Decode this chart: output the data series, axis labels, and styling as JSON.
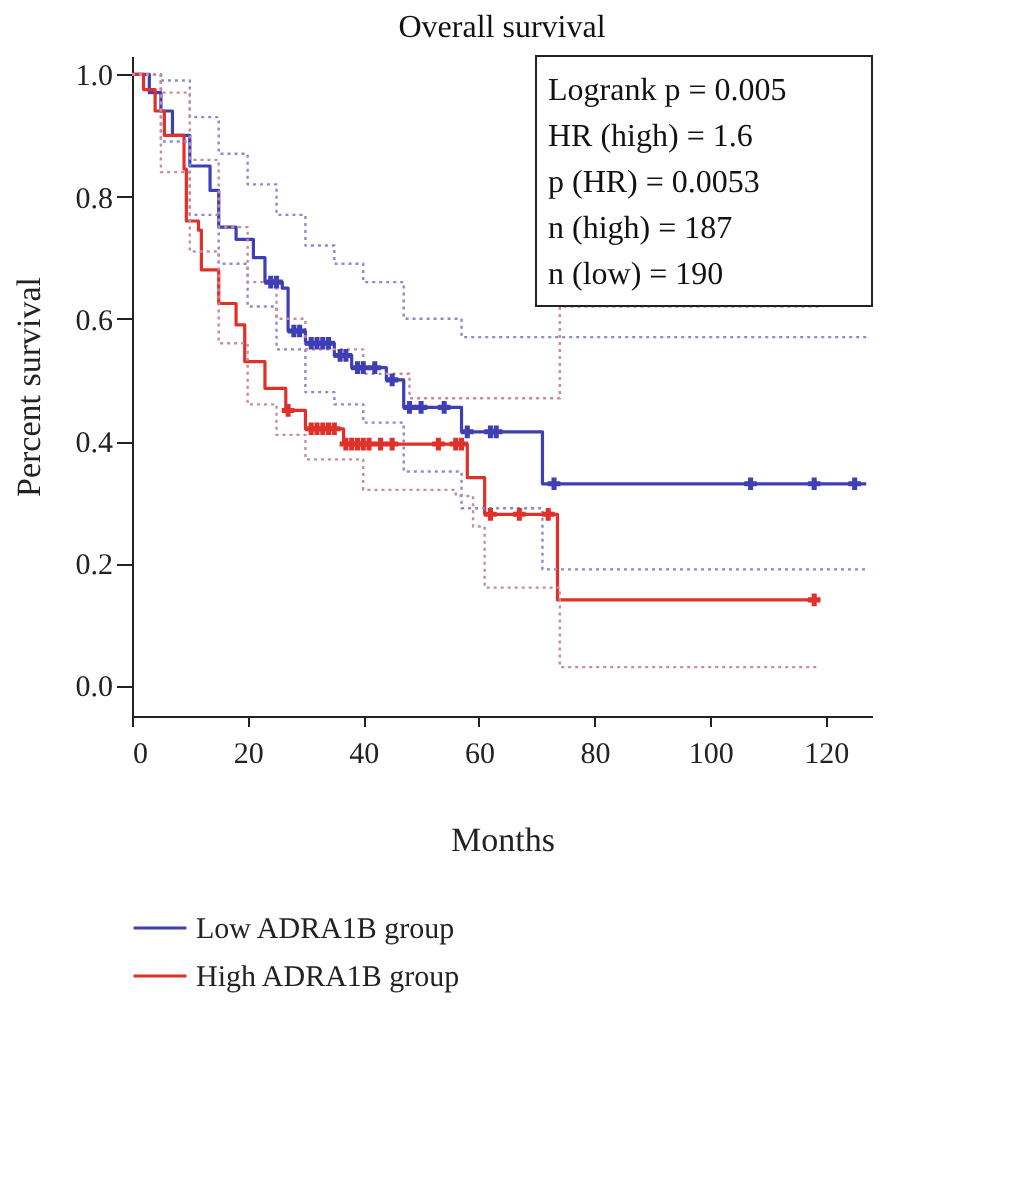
{
  "chart_data": {
    "type": "step",
    "title": "Overall survival",
    "xlabel": "Months",
    "ylabel": "Percent survival",
    "annotations": [
      "Logrank p = 0.005",
      "HR (high) = 1.6",
      "p (HR) = 0.0053",
      "n (high) = 187",
      "n (low) = 190"
    ],
    "xlim": [
      0,
      128
    ],
    "ylim": [
      -0.05,
      1.03
    ],
    "xticks": [
      0,
      20,
      40,
      60,
      80,
      100,
      120
    ],
    "yticks": [
      {
        "value": 0,
        "label": "0.0"
      },
      {
        "value": 0.2,
        "label": "0.2"
      },
      {
        "value": 0.4,
        "label": "0.4"
      },
      {
        "value": 0.6,
        "label": "0.6"
      },
      {
        "value": 0.8,
        "label": "0.8"
      },
      {
        "value": 1,
        "label": "1.0"
      }
    ],
    "grid": false,
    "legend": "bottom",
    "line_style": "solid",
    "marker": "none",
    "series": [
      {
        "name": "Low ADRA1B group",
        "color": "#3f3fb5",
        "x": [
          0,
          3,
          5,
          7,
          10,
          13.5,
          15,
          18,
          21,
          23,
          26,
          27,
          30,
          35,
          38,
          44,
          47,
          57,
          71,
          127
        ],
        "values": [
          1,
          0.97,
          0.94,
          0.9,
          0.85,
          0.81,
          0.75,
          0.73,
          0.7,
          0.66,
          0.65,
          0.58,
          0.56,
          0.54,
          0.52,
          0.5,
          0.455,
          0.415,
          0.33,
          0.33
        ]
      },
      {
        "name": "High ADRA1B group",
        "color": "#e0302a",
        "x": [
          0,
          2,
          4,
          5.6,
          9,
          9.4,
          11.5,
          12,
          15,
          18,
          19.5,
          23,
          26.6,
          30,
          36.6,
          58,
          61,
          73.6,
          119
        ],
        "values": [
          1,
          0.975,
          0.94,
          0.9,
          0.845,
          0.76,
          0.745,
          0.68,
          0.625,
          0.59,
          0.53,
          0.486,
          0.45,
          0.42,
          0.395,
          0.34,
          0.28,
          0.14,
          0.14
        ]
      },
      {
        "color": "#8a8ad0",
        "type": "step",
        "line_style": "dotted",
        "x": [
          0,
          5,
          10,
          15,
          20,
          25,
          30,
          35,
          40,
          47,
          57,
          127
        ],
        "values": [
          1,
          0.99,
          0.93,
          0.87,
          0.82,
          0.77,
          0.72,
          0.69,
          0.66,
          0.6,
          0.57,
          0.57
        ]
      },
      {
        "color": "#8a8ad0",
        "type": "step",
        "line_style": "dotted",
        "x": [
          0,
          5,
          10,
          15,
          20,
          25,
          30,
          35,
          40,
          47,
          57,
          71,
          127
        ],
        "values": [
          1,
          0.89,
          0.77,
          0.69,
          0.62,
          0.55,
          0.48,
          0.46,
          0.43,
          0.35,
          0.29,
          0.19,
          0.19
        ]
      },
      {
        "color": "#c98aa0",
        "type": "step",
        "line_style": "dotted",
        "x": [
          0,
          5,
          10,
          15,
          20,
          25,
          30,
          40,
          48,
          74,
          119
        ],
        "values": [
          1,
          0.97,
          0.86,
          0.75,
          0.66,
          0.6,
          0.55,
          0.51,
          0.47,
          0.62,
          0.62
        ]
      },
      {
        "color": "#c98aa0",
        "type": "step",
        "line_style": "dotted",
        "x": [
          0,
          5,
          10,
          15,
          20,
          25,
          30,
          40,
          56,
          59,
          61,
          74,
          119
        ],
        "values": [
          1,
          0.84,
          0.71,
          0.56,
          0.46,
          0.41,
          0.37,
          0.32,
          0.31,
          0.26,
          0.16,
          0.03,
          0.03
        ]
      },
      {
        "color": "#3f3fb5",
        "type": "scatter",
        "marker": "cross",
        "x": [
          24,
          25,
          28,
          29,
          31,
          32,
          33,
          34,
          36,
          37,
          39,
          40,
          42,
          45,
          48,
          50,
          54,
          58,
          62,
          63,
          73,
          107,
          118,
          125
        ],
        "values": [
          0.66,
          0.66,
          0.58,
          0.58,
          0.56,
          0.56,
          0.56,
          0.56,
          0.54,
          0.54,
          0.52,
          0.52,
          0.52,
          0.5,
          0.455,
          0.455,
          0.455,
          0.415,
          0.415,
          0.415,
          0.33,
          0.33,
          0.33,
          0.33
        ]
      },
      {
        "color": "#e0302a",
        "type": "scatter",
        "marker": "cross",
        "x": [
          27,
          31,
          32,
          33,
          34,
          35,
          37,
          38,
          39,
          40,
          41,
          43,
          45,
          53,
          56,
          57,
          62,
          67,
          72,
          118
        ],
        "values": [
          0.45,
          0.42,
          0.42,
          0.42,
          0.42,
          0.42,
          0.395,
          0.395,
          0.395,
          0.395,
          0.395,
          0.395,
          0.395,
          0.395,
          0.395,
          0.395,
          0.28,
          0.28,
          0.28,
          0.14
        ]
      }
    ]
  }
}
